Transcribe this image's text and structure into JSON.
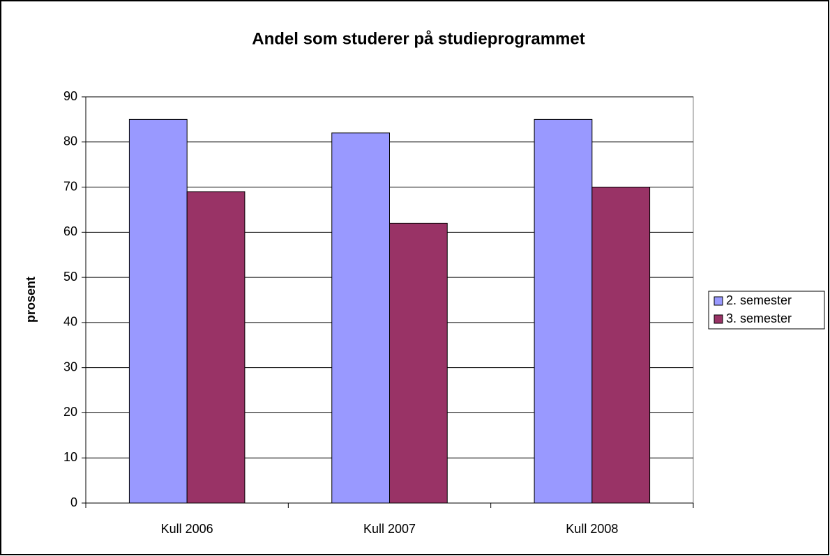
{
  "chart_data": {
    "type": "bar",
    "title": "Andel som studerer på studieprogrammet",
    "y_label": "prosent",
    "categories": [
      "Kull 2006",
      "Kull 2007",
      "Kull 2008"
    ],
    "series": [
      {
        "name": "2. semester",
        "color": "#9999ff",
        "values": [
          85,
          82,
          85
        ]
      },
      {
        "name": "3. semester",
        "color": "#993366",
        "values": [
          69,
          62,
          70
        ]
      }
    ],
    "ylim": [
      0,
      90
    ],
    "yticks": [
      0,
      10,
      20,
      30,
      40,
      50,
      60,
      70,
      80,
      90
    ],
    "grid": true,
    "legend": "right"
  }
}
